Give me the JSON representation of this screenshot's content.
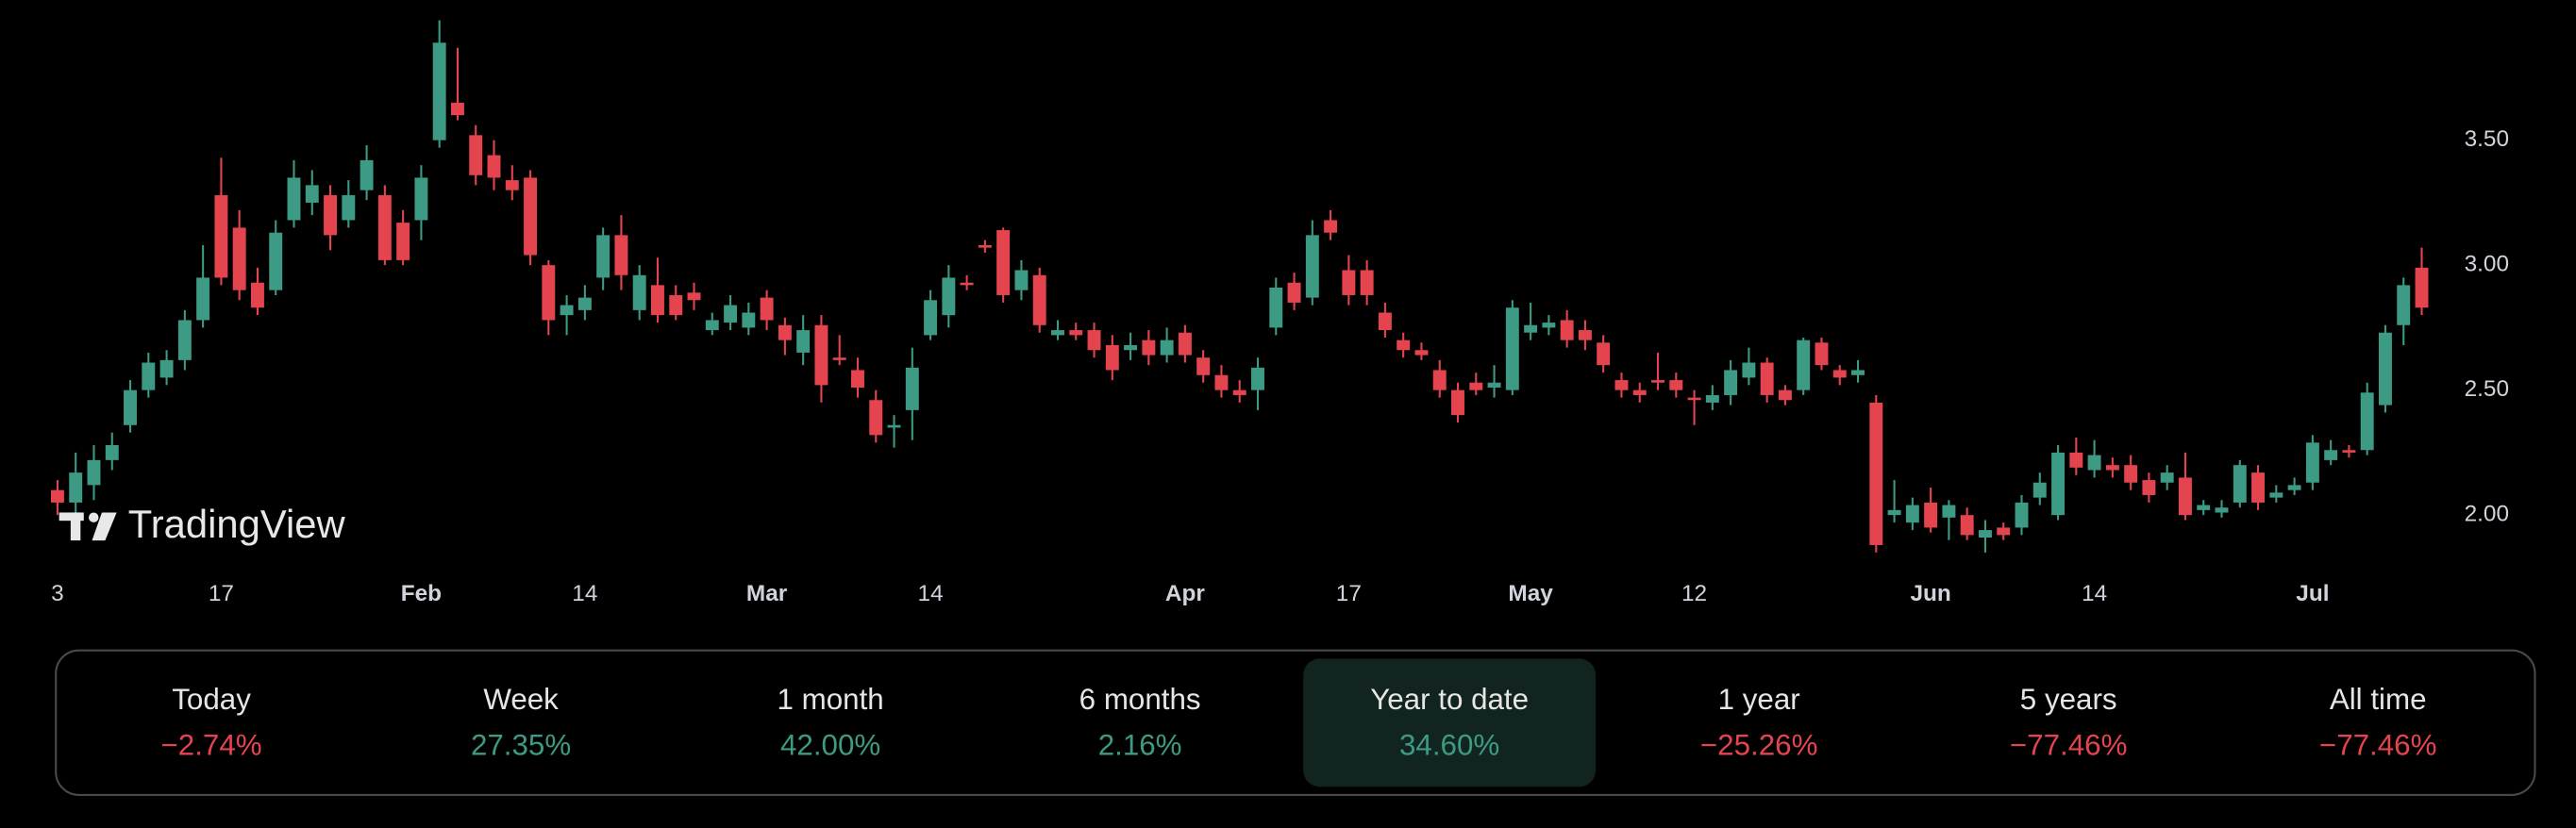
{
  "chart_data": {
    "type": "candlestick",
    "watermark": "TradingView",
    "categories": [
      "3",
      null,
      null,
      null,
      null,
      null,
      null,
      null,
      null,
      "17",
      null,
      null,
      null,
      null,
      null,
      null,
      null,
      null,
      null,
      null,
      "Feb",
      null,
      null,
      null,
      null,
      null,
      null,
      null,
      null,
      "14",
      null,
      null,
      null,
      null,
      null,
      null,
      null,
      null,
      null,
      "Mar",
      null,
      null,
      null,
      null,
      null,
      null,
      null,
      null,
      "14",
      null,
      null,
      null,
      null,
      null,
      null,
      null,
      null,
      null,
      null,
      null,
      null,
      null,
      "Apr",
      null,
      null,
      null,
      null,
      null,
      null,
      null,
      null,
      "17",
      null,
      null,
      null,
      null,
      null,
      null,
      null,
      null,
      null,
      "May",
      null,
      null,
      null,
      null,
      null,
      null,
      null,
      null,
      "12",
      null,
      null,
      null,
      null,
      null,
      null,
      null,
      null,
      null,
      null,
      null,
      null,
      "Jun",
      null,
      null,
      null,
      null,
      null,
      null,
      null,
      null,
      "14",
      null,
      null,
      null,
      null,
      null,
      null,
      null,
      null,
      null,
      null,
      null,
      "Jul",
      null,
      null,
      null,
      null,
      null,
      null
    ],
    "open": [
      2.1,
      2.05,
      2.12,
      2.22,
      2.36,
      2.5,
      2.55,
      2.62,
      2.78,
      3.28,
      3.15,
      2.93,
      2.9,
      3.18,
      3.25,
      3.28,
      3.18,
      3.3,
      3.28,
      3.17,
      3.18,
      3.5,
      3.65,
      3.52,
      3.44,
      3.34,
      3.35,
      3.0,
      2.8,
      2.82,
      2.95,
      3.12,
      2.82,
      2.92,
      2.88,
      2.89,
      2.74,
      2.77,
      2.75,
      2.87,
      2.76,
      2.65,
      2.76,
      2.63,
      2.58,
      2.46,
      2.35,
      2.42,
      2.72,
      2.8,
      2.93,
      3.08,
      3.14,
      2.9,
      2.96,
      2.72,
      2.74,
      2.74,
      2.68,
      2.66,
      2.7,
      2.64,
      2.73,
      2.63,
      2.56,
      2.5,
      2.5,
      2.75,
      2.93,
      2.87,
      3.18,
      2.98,
      2.98,
      2.81,
      2.7,
      2.66,
      2.58,
      2.5,
      2.53,
      2.51,
      2.5,
      2.73,
      2.75,
      2.78,
      2.74,
      2.69,
      2.54,
      2.5,
      2.54,
      2.54,
      2.47,
      2.45,
      2.48,
      2.55,
      2.61,
      2.5,
      2.5,
      2.69,
      2.58,
      2.56,
      2.45,
      2.0,
      1.97,
      2.05,
      1.99,
      2.0,
      1.91,
      1.95,
      1.95,
      2.07,
      2.0,
      2.25,
      2.18,
      2.2,
      2.2,
      2.14,
      2.13,
      2.15,
      2.02,
      2.01,
      2.05,
      2.17,
      2.07,
      2.1,
      2.13,
      2.22,
      2.26,
      2.26,
      2.44,
      2.76,
      2.99
    ],
    "high": [
      2.14,
      2.25,
      2.28,
      2.33,
      2.54,
      2.65,
      2.66,
      2.82,
      3.08,
      3.43,
      3.22,
      2.99,
      3.18,
      3.42,
      3.38,
      3.32,
      3.34,
      3.48,
      3.32,
      3.22,
      3.4,
      3.98,
      3.87,
      3.56,
      3.5,
      3.4,
      3.38,
      3.02,
      2.88,
      2.92,
      3.15,
      3.2,
      3.0,
      3.03,
      2.92,
      2.93,
      2.81,
      2.88,
      2.85,
      2.9,
      2.79,
      2.8,
      2.8,
      2.72,
      2.63,
      2.5,
      2.4,
      2.67,
      2.9,
      3.0,
      2.96,
      3.1,
      3.15,
      3.02,
      2.99,
      2.78,
      2.77,
      2.77,
      2.72,
      2.73,
      2.74,
      2.75,
      2.76,
      2.66,
      2.6,
      2.54,
      2.63,
      2.95,
      2.97,
      3.18,
      3.22,
      3.04,
      3.02,
      2.85,
      2.73,
      2.69,
      2.62,
      2.53,
      2.57,
      2.6,
      2.86,
      2.85,
      2.8,
      2.82,
      2.78,
      2.72,
      2.57,
      2.53,
      2.65,
      2.57,
      2.5,
      2.52,
      2.62,
      2.67,
      2.63,
      2.52,
      2.71,
      2.71,
      2.6,
      2.62,
      2.48,
      2.14,
      2.07,
      2.11,
      2.06,
      2.03,
      1.98,
      1.97,
      2.08,
      2.17,
      2.28,
      2.31,
      2.3,
      2.23,
      2.24,
      2.17,
      2.2,
      2.25,
      2.06,
      2.06,
      2.22,
      2.2,
      2.12,
      2.15,
      2.32,
      2.3,
      2.28,
      2.53,
      2.76,
      2.95,
      3.07
    ],
    "low": [
      2.0,
      1.98,
      2.06,
      2.18,
      2.33,
      2.47,
      2.52,
      2.58,
      2.75,
      2.92,
      2.86,
      2.8,
      2.88,
      3.15,
      3.2,
      3.06,
      3.15,
      3.26,
      3.0,
      3.0,
      3.1,
      3.47,
      3.58,
      3.32,
      3.3,
      3.26,
      3.0,
      2.72,
      2.72,
      2.78,
      2.9,
      2.9,
      2.78,
      2.77,
      2.78,
      2.82,
      2.72,
      2.74,
      2.72,
      2.74,
      2.64,
      2.6,
      2.45,
      2.6,
      2.47,
      2.29,
      2.27,
      2.3,
      2.7,
      2.75,
      2.9,
      3.05,
      2.85,
      2.86,
      2.73,
      2.7,
      2.7,
      2.63,
      2.54,
      2.62,
      2.6,
      2.61,
      2.61,
      2.53,
      2.47,
      2.45,
      2.42,
      2.72,
      2.82,
      2.84,
      3.1,
      2.84,
      2.84,
      2.71,
      2.63,
      2.62,
      2.47,
      2.37,
      2.48,
      2.47,
      2.48,
      2.7,
      2.72,
      2.67,
      2.66,
      2.57,
      2.47,
      2.45,
      2.5,
      2.47,
      2.36,
      2.42,
      2.44,
      2.52,
      2.45,
      2.44,
      2.48,
      2.58,
      2.52,
      2.53,
      1.85,
      1.97,
      1.94,
      1.93,
      1.9,
      1.9,
      1.85,
      1.9,
      1.92,
      2.04,
      1.98,
      2.16,
      2.15,
      2.15,
      2.1,
      2.05,
      2.1,
      1.98,
      2.0,
      1.99,
      2.03,
      2.02,
      2.05,
      2.08,
      2.1,
      2.2,
      2.23,
      2.24,
      2.41,
      2.68,
      2.8
    ],
    "close": [
      2.05,
      2.17,
      2.22,
      2.28,
      2.5,
      2.61,
      2.62,
      2.78,
      2.95,
      2.95,
      2.9,
      2.83,
      3.13,
      3.35,
      3.32,
      3.12,
      3.28,
      3.42,
      3.02,
      3.02,
      3.35,
      3.89,
      3.6,
      3.36,
      3.35,
      3.3,
      3.04,
      2.78,
      2.84,
      2.87,
      3.12,
      2.96,
      2.96,
      2.8,
      2.8,
      2.86,
      2.78,
      2.84,
      2.81,
      2.78,
      2.7,
      2.74,
      2.52,
      2.62,
      2.51,
      2.32,
      2.36,
      2.59,
      2.86,
      2.95,
      2.92,
      3.07,
      2.88,
      2.98,
      2.76,
      2.74,
      2.72,
      2.66,
      2.58,
      2.68,
      2.64,
      2.7,
      2.64,
      2.56,
      2.5,
      2.48,
      2.59,
      2.91,
      2.85,
      3.12,
      3.13,
      2.88,
      2.88,
      2.74,
      2.66,
      2.64,
      2.5,
      2.4,
      2.5,
      2.53,
      2.83,
      2.76,
      2.77,
      2.7,
      2.7,
      2.6,
      2.5,
      2.48,
      2.53,
      2.5,
      2.46,
      2.48,
      2.58,
      2.61,
      2.48,
      2.46,
      2.7,
      2.6,
      2.55,
      2.58,
      1.88,
      2.02,
      2.04,
      1.95,
      2.04,
      1.92,
      1.94,
      1.92,
      2.05,
      2.13,
      2.25,
      2.19,
      2.24,
      2.18,
      2.13,
      2.08,
      2.17,
      2.0,
      2.04,
      2.03,
      2.2,
      2.05,
      2.09,
      2.12,
      2.29,
      2.26,
      2.25,
      2.49,
      2.73,
      2.92,
      2.83
    ],
    "up_color": "#3d9a84",
    "down_color": "#e4444e",
    "ylim": [
      1.8,
      4.06
    ],
    "yticks": [
      {
        "value": 2,
        "label": "2.00"
      },
      {
        "value": 2.5,
        "label": "2.50"
      },
      {
        "value": 3,
        "label": "3.00"
      },
      {
        "value": 3.5,
        "label": "3.50"
      }
    ]
  },
  "performance": {
    "labels": [
      "Today",
      "Week",
      "1 month",
      "6 months",
      "Year to date",
      "1 year",
      "5 years",
      "All time"
    ],
    "values": [
      -2.74,
      27.35,
      42.0,
      2.16,
      34.6,
      -25.26,
      -77.46,
      -77.46
    ],
    "value_labels": [
      "−2.74%",
      "27.35%",
      "42.00%",
      "2.16%",
      "34.60%",
      "−25.26%",
      "−77.46%",
      "−77.46%"
    ],
    "selected": 4
  }
}
